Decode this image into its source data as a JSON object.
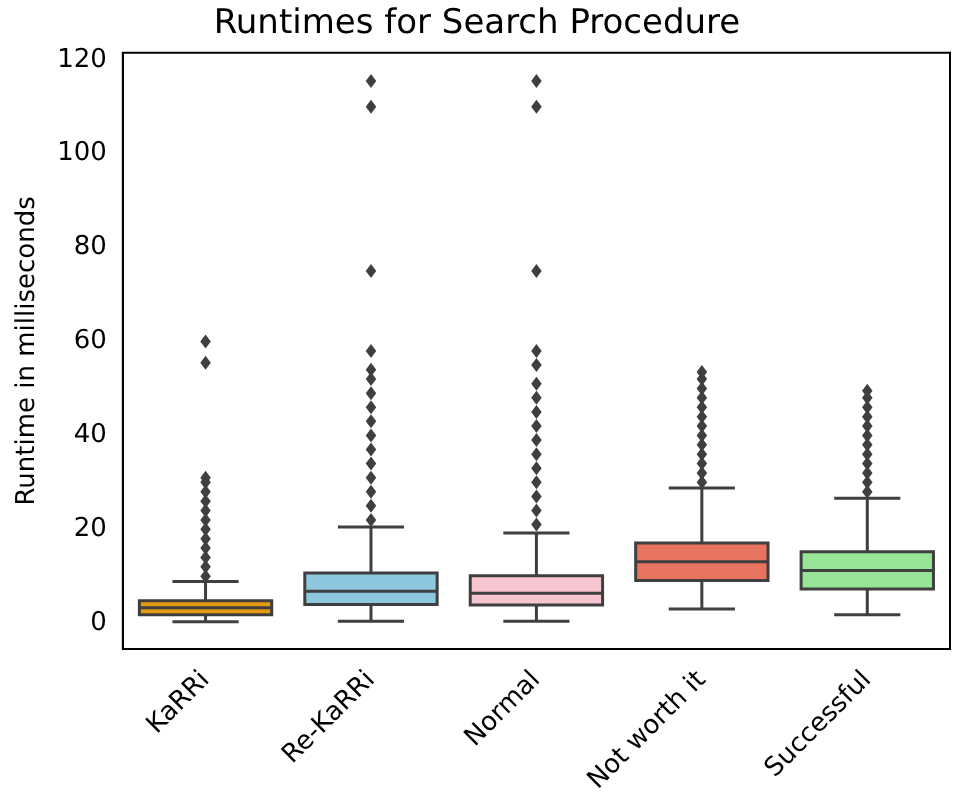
{
  "chart_data": {
    "type": "box",
    "title": "Runtimes for Search Procedure",
    "ylabel": "Runtime in milliseconds",
    "categories": [
      "KaRRi",
      "Re-KaRRi",
      "Normal",
      "Not worth it",
      "Successful"
    ],
    "colors": [
      "#e59a13",
      "#8ec8df",
      "#f6c5cf",
      "#e8735e",
      "#98e598"
    ],
    "boxes": [
      {
        "low": 0.3,
        "q1": 1.8,
        "median": 3.3,
        "q3": 4.8,
        "high": 8.9,
        "outliers": [
          10,
          12,
          14,
          16,
          18,
          20,
          22,
          24,
          26,
          28,
          30,
          31,
          55.5,
          60
        ]
      },
      {
        "low": 0.4,
        "q1": 4.0,
        "median": 6.8,
        "q3": 10.7,
        "high": 20.5,
        "outliers": [
          22,
          25,
          28,
          31,
          34,
          37,
          40,
          43,
          46,
          49,
          52,
          54,
          58,
          75,
          110,
          115.5
        ]
      },
      {
        "low": 0.4,
        "q1": 3.9,
        "median": 6.4,
        "q3": 10.1,
        "high": 19.2,
        "outliers": [
          21,
          24,
          27,
          30,
          33,
          36,
          39,
          42,
          45,
          48,
          51,
          55,
          58,
          75,
          110,
          115.5
        ]
      },
      {
        "low": 3.0,
        "q1": 9.1,
        "median": 13.1,
        "q3": 17.1,
        "high": 28.8,
        "outliers": [
          30,
          32,
          34,
          36,
          38,
          40,
          42,
          44,
          46,
          48,
          50,
          52,
          53.5
        ]
      },
      {
        "low": 1.8,
        "q1": 7.3,
        "median": 11.2,
        "q3": 15.2,
        "high": 26.6,
        "outliers": [
          28,
          30,
          32,
          34,
          36,
          38,
          40,
          42,
          44,
          46,
          48,
          49.5
        ]
      }
    ],
    "ylim": [
      -5.5,
      121.5
    ],
    "yticks": [
      0,
      20,
      40,
      60,
      80,
      100,
      120
    ]
  }
}
